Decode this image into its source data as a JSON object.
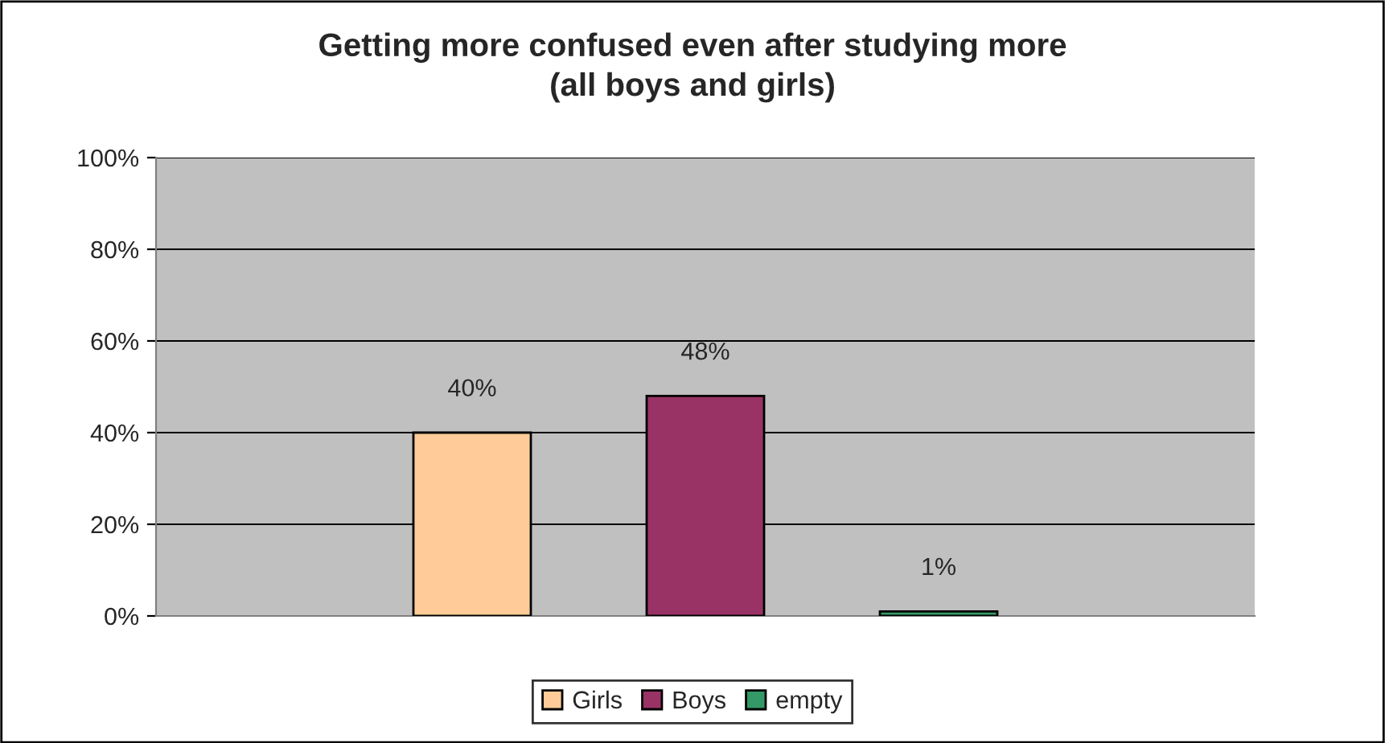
{
  "chart_data": {
    "type": "bar",
    "title": "Getting more confused even after studying more\n(all boys and girls)",
    "categories": [
      null
    ],
    "series": [
      {
        "name": "Girls",
        "color": "#ffcc99",
        "values": [
          40
        ],
        "value_labels": [
          "40%"
        ]
      },
      {
        "name": "Boys",
        "color": "#993366",
        "values": [
          48
        ],
        "value_labels": [
          "48%"
        ]
      },
      {
        "name": "empty",
        "color": "#339966",
        "values": [
          1
        ],
        "value_labels": [
          "1%"
        ]
      }
    ],
    "ylim": [
      0,
      100
    ],
    "yticks": [
      {
        "value": 0,
        "label": "0%"
      },
      {
        "value": 20,
        "label": "20%"
      },
      {
        "value": 40,
        "label": "40%"
      },
      {
        "value": 60,
        "label": "60%"
      },
      {
        "value": 80,
        "label": "80%"
      },
      {
        "value": 100,
        "label": "100%"
      }
    ],
    "grid": "y",
    "legend": "bottom"
  }
}
